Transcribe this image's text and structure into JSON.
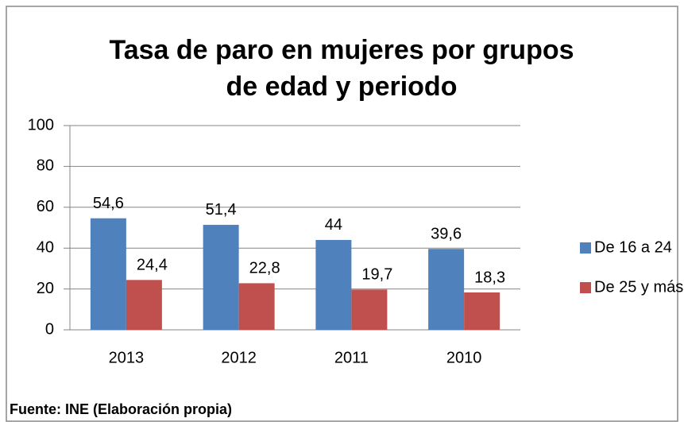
{
  "chart_data": {
    "type": "bar",
    "title": "Tasa de paro en mujeres por grupos de edad y periodo",
    "categories": [
      "2013",
      "2012",
      "2011",
      "2010"
    ],
    "series": [
      {
        "name": "De 16 a 24",
        "color": "#4f81bd",
        "values": [
          54.6,
          51.4,
          44,
          39.6
        ],
        "value_labels": [
          "54,6",
          "51,4",
          "44",
          "39,6"
        ]
      },
      {
        "name": "De 25 y más",
        "color": "#c0504d",
        "values": [
          24.4,
          22.8,
          19.7,
          18.3
        ],
        "value_labels": [
          "24,4",
          "22,8",
          "19,7",
          "18,3"
        ]
      }
    ],
    "ylim": [
      0,
      100
    ],
    "yticks": [
      0,
      20,
      40,
      60,
      80,
      100
    ],
    "grid": true,
    "legend": "right",
    "source": "Fuente: INE (Elaboración propia)"
  }
}
